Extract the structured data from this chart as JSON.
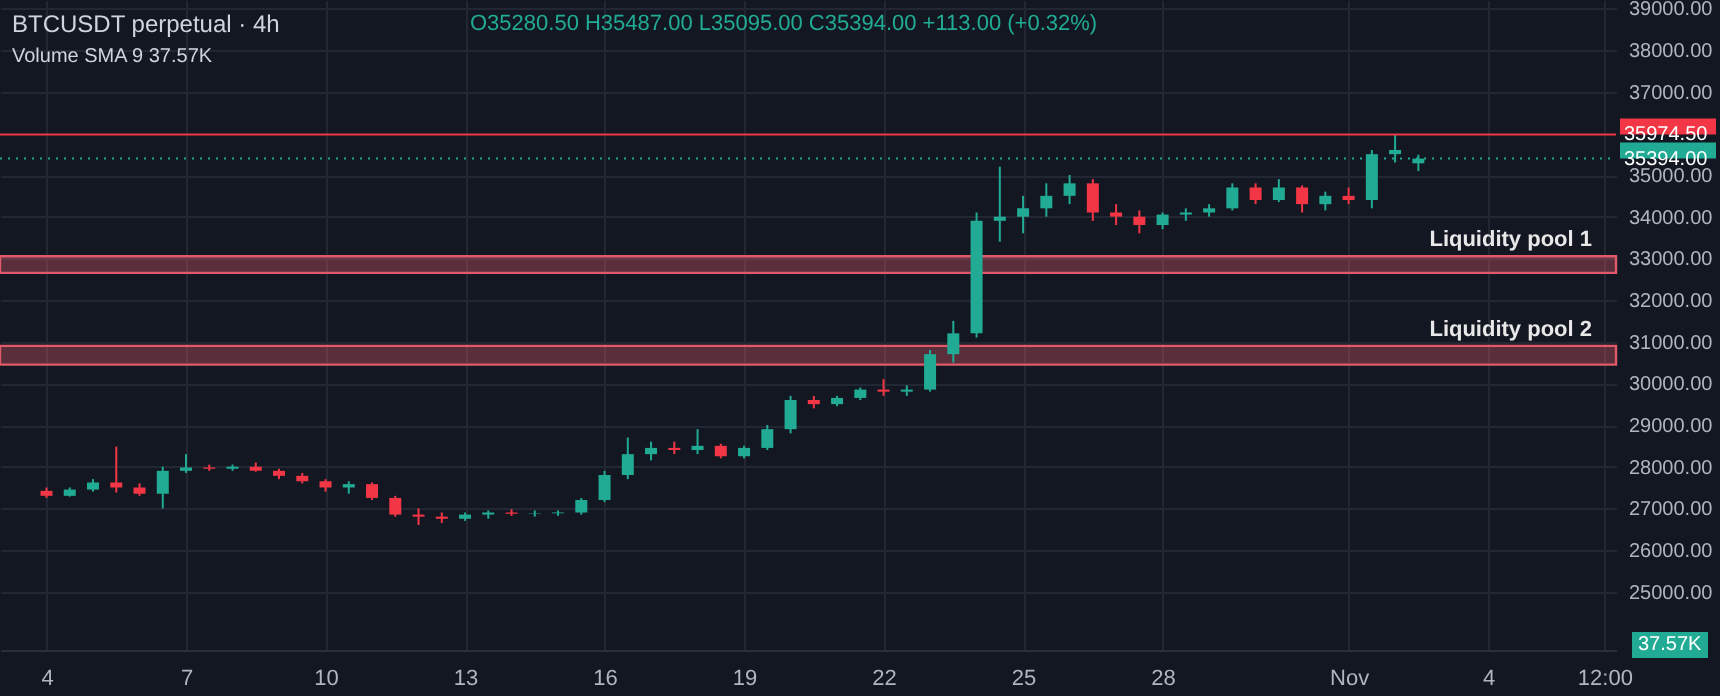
{
  "chart_data": {
    "type": "candlestick",
    "title": "BTCUSDT perpetual · 4h",
    "annotations": [
      "O35280.50 H35487.00 L35095.00 C35394.00 +113.00 (+0.32%)",
      "Volume SMA 9 37.57K",
      "37.57K"
    ],
    "x": [
      "--10-04T00:00",
      "--10-04T12:00",
      "--10-05T00:00",
      "--10-05T12:00",
      "--10-06T00:00",
      "--10-06T12:00",
      "--10-07T00:00",
      "--10-07T12:00",
      "--10-08T00:00",
      "--10-08T12:00",
      "--10-09T00:00",
      "--10-09T12:00",
      "--10-10T00:00",
      "--10-10T12:00",
      "--10-11T00:00",
      "--10-11T12:00",
      "--10-12T00:00",
      "--10-12T12:00",
      "--10-13T00:00",
      "--10-13T12:00",
      "--10-14T00:00",
      "--10-14T12:00",
      "--10-15T00:00",
      "--10-15T12:00",
      "--10-16T00:00",
      "--10-16T12:00",
      "--10-17T00:00",
      "--10-17T12:00",
      "--10-18T00:00",
      "--10-18T12:00",
      "--10-19T00:00",
      "--10-19T12:00",
      "--10-20T00:00",
      "--10-20T12:00",
      "--10-21T00:00",
      "--10-21T12:00",
      "--10-22T00:00",
      "--10-22T12:00",
      "--10-23T00:00",
      "--10-23T12:00",
      "--10-24T00:00",
      "--10-24T12:00",
      "--10-25T00:00",
      "--10-25T12:00",
      "--10-26T00:00",
      "--10-26T12:00",
      "--10-27T00:00",
      "--10-27T12:00",
      "--10-28T00:00",
      "--10-28T12:00",
      "--10-29T00:00",
      "--10-29T12:00",
      "--10-30T00:00",
      "--10-30T12:00",
      "--10-31T00:00",
      "--10-31T12:00",
      "--11-01T00:00",
      "--11-01T12:00",
      "--11-02T00:00",
      "--11-02T12:00"
    ],
    "ohlc": [
      [
        27420,
        27500,
        27250,
        27300
      ],
      [
        27300,
        27500,
        27280,
        27450
      ],
      [
        27450,
        27700,
        27400,
        27620
      ],
      [
        27620,
        28480,
        27380,
        27500
      ],
      [
        27500,
        27600,
        27300,
        27350
      ],
      [
        27350,
        28000,
        27000,
        27900
      ],
      [
        27900,
        28300,
        27850,
        27980
      ],
      [
        27980,
        28050,
        27900,
        27950
      ],
      [
        27950,
        28050,
        27900,
        28000
      ],
      [
        28000,
        28100,
        27880,
        27900
      ],
      [
        27900,
        27950,
        27700,
        27780
      ],
      [
        27780,
        27850,
        27600,
        27650
      ],
      [
        27650,
        27700,
        27400,
        27500
      ],
      [
        27500,
        27650,
        27350,
        27580
      ],
      [
        27580,
        27620,
        27200,
        27250
      ],
      [
        27250,
        27300,
        26800,
        26850
      ],
      [
        26850,
        27000,
        26600,
        26800
      ],
      [
        26800,
        26900,
        26650,
        26750
      ],
      [
        26750,
        26900,
        26700,
        26850
      ],
      [
        26850,
        26950,
        26750,
        26900
      ],
      [
        26900,
        26980,
        26820,
        26870
      ],
      [
        26870,
        26950,
        26800,
        26880
      ],
      [
        26880,
        26950,
        26820,
        26900
      ],
      [
        26900,
        27250,
        26850,
        27200
      ],
      [
        27200,
        27900,
        27150,
        27800
      ],
      [
        27800,
        28700,
        27700,
        28300
      ],
      [
        28300,
        28600,
        28150,
        28450
      ],
      [
        28450,
        28600,
        28300,
        28400
      ],
      [
        28400,
        28900,
        28300,
        28500
      ],
      [
        28500,
        28550,
        28200,
        28250
      ],
      [
        28250,
        28500,
        28200,
        28450
      ],
      [
        28450,
        29000,
        28400,
        28900
      ],
      [
        28900,
        29700,
        28800,
        29600
      ],
      [
        29600,
        29700,
        29400,
        29500
      ],
      [
        29500,
        29700,
        29450,
        29650
      ],
      [
        29650,
        29900,
        29600,
        29850
      ],
      [
        29850,
        30100,
        29700,
        29800
      ],
      [
        29800,
        29950,
        29700,
        29850
      ],
      [
        29850,
        30800,
        29800,
        30700
      ],
      [
        30700,
        31500,
        30500,
        31200
      ],
      [
        31200,
        34100,
        31100,
        33900
      ],
      [
        33900,
        35200,
        33400,
        34000
      ],
      [
        34000,
        34500,
        33600,
        34200
      ],
      [
        34200,
        34800,
        34000,
        34500
      ],
      [
        34500,
        35000,
        34300,
        34800
      ],
      [
        34800,
        34900,
        33900,
        34100
      ],
      [
        34100,
        34300,
        33800,
        34000
      ],
      [
        34000,
        34150,
        33600,
        33800
      ],
      [
        33800,
        34100,
        33700,
        34050
      ],
      [
        34050,
        34200,
        33900,
        34100
      ],
      [
        34100,
        34300,
        34000,
        34200
      ],
      [
        34200,
        34800,
        34150,
        34700
      ],
      [
        34700,
        34800,
        34300,
        34400
      ],
      [
        34400,
        34900,
        34350,
        34700
      ],
      [
        34700,
        34750,
        34100,
        34300
      ],
      [
        34300,
        34600,
        34150,
        34500
      ],
      [
        34500,
        34700,
        34300,
        34400
      ],
      [
        34400,
        35600,
        34200,
        35500
      ],
      [
        35500,
        35975,
        35300,
        35600
      ],
      [
        35280.5,
        35487,
        35095,
        35394
      ]
    ],
    "colors": [
      "#f23645",
      "#22ab94",
      "#22ab94",
      "#f23645",
      "#f23645",
      "#22ab94",
      "#22ab94",
      "#f23645",
      "#22ab94",
      "#f23645",
      "#f23645",
      "#f23645",
      "#f23645",
      "#22ab94",
      "#f23645",
      "#f23645",
      "#f23645",
      "#f23645",
      "#22ab94",
      "#22ab94",
      "#f23645",
      "#22ab94",
      "#22ab94",
      "#22ab94",
      "#22ab94",
      "#22ab94",
      "#22ab94",
      "#f23645",
      "#22ab94",
      "#f23645",
      "#22ab94",
      "#22ab94",
      "#22ab94",
      "#f23645",
      "#22ab94",
      "#22ab94",
      "#f23645",
      "#22ab94",
      "#22ab94",
      "#22ab94",
      "#22ab94",
      "#22ab94",
      "#22ab94",
      "#22ab94",
      "#22ab94",
      "#f23645",
      "#f23645",
      "#f23645",
      "#22ab94",
      "#22ab94",
      "#22ab94",
      "#22ab94",
      "#f23645",
      "#22ab94",
      "#f23645",
      "#22ab94",
      "#f23645",
      "#22ab94",
      "#22ab94",
      "#22ab94"
    ],
    "xlim": [
      "--10-03T00:00",
      "--11-06T18:00"
    ],
    "xticks": [
      {
        "value": "--10-04T00:00",
        "label": "4"
      },
      {
        "value": "--10-07T00:00",
        "label": "7"
      },
      {
        "value": "--10-10T00:00",
        "label": "10"
      },
      {
        "value": "--10-13T00:00",
        "label": "13"
      },
      {
        "value": "--10-16T00:00",
        "label": "16"
      },
      {
        "value": "--10-19T00:00",
        "label": "19"
      },
      {
        "value": "--10-22T00:00",
        "label": "22"
      },
      {
        "value": "--10-25T00:00",
        "label": "25"
      },
      {
        "value": "--10-28T00:00",
        "label": "28"
      },
      {
        "value": "--11-01T00:00",
        "label": "Nov"
      },
      {
        "value": "--11-04T00:00",
        "label": "4"
      },
      {
        "value": "--11-06T12:00",
        "label": "12:00"
      }
    ],
    "ylim": [
      23600,
      39200
    ],
    "yticks": [
      {
        "value": 25000,
        "label": "25000.00"
      },
      {
        "value": 26000,
        "label": "26000.00"
      },
      {
        "value": 27000,
        "label": "27000.00"
      },
      {
        "value": 28000,
        "label": "28000.00"
      },
      {
        "value": 29000,
        "label": "29000.00"
      },
      {
        "value": 30000,
        "label": "30000.00"
      },
      {
        "value": 31000,
        "label": "31000.00"
      },
      {
        "value": 32000,
        "label": "32000.00"
      },
      {
        "value": 33000,
        "label": "33000.00"
      },
      {
        "value": 34000,
        "label": "34000.00"
      },
      {
        "value": 35000,
        "label": "35000.00"
      },
      {
        "value": 37000,
        "label": "37000.00"
      },
      {
        "value": 38000,
        "label": "38000.00"
      },
      {
        "value": 39000,
        "label": "39000.00"
      }
    ],
    "grid": true,
    "ref_lines": [
      {
        "axis": "y",
        "value": 35974.5,
        "label": "35974.50",
        "color": "#f23645",
        "line_style": "solid"
      },
      {
        "axis": "y",
        "value": 35394,
        "label": "35394.00",
        "color": "#22ab94",
        "line_style": "dotted"
      }
    ],
    "bands": [
      {
        "axis": "y",
        "from": 32650,
        "to": 33050,
        "label": "Liquidity pool 1",
        "color": "#e05a6a"
      },
      {
        "axis": "y",
        "from": 30450,
        "to": 30900,
        "label": "Liquidity pool 2",
        "color": "#e05a6a"
      }
    ]
  }
}
